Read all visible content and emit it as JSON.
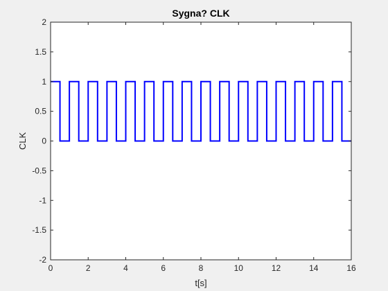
{
  "chart_data": {
    "type": "line",
    "title": "Sygna? CLK",
    "xlabel": "t[s]",
    "ylabel": "CLK",
    "xlim": [
      0,
      16
    ],
    "ylim": [
      -2,
      2
    ],
    "xticks": [
      0,
      2,
      4,
      6,
      8,
      10,
      12,
      14,
      16
    ],
    "yticks": [
      -2,
      -1.5,
      -1,
      -0.5,
      0,
      0.5,
      1,
      1.5,
      2
    ],
    "xtick_labels": [
      "0",
      "2",
      "4",
      "6",
      "8",
      "10",
      "12",
      "14",
      "16"
    ],
    "ytick_labels": [
      "-2",
      "-1.5",
      "-1",
      "-0.5",
      "0",
      "0.5",
      "1",
      "1.5",
      "2"
    ],
    "grid": false,
    "legend": "none",
    "series": [
      {
        "color": "#0000ff",
        "style": "step",
        "x": [
          0,
          0.5,
          0.5,
          1,
          1,
          1.5,
          1.5,
          2,
          2,
          2.5,
          2.5,
          3,
          3,
          3.5,
          3.5,
          4,
          4,
          4.5,
          4.5,
          5,
          5,
          5.5,
          5.5,
          6,
          6,
          6.5,
          6.5,
          7,
          7,
          7.5,
          7.5,
          8,
          8,
          8.5,
          8.5,
          9,
          9,
          9.5,
          9.5,
          10,
          10,
          10.5,
          10.5,
          11,
          11,
          11.5,
          11.5,
          12,
          12,
          12.5,
          12.5,
          13,
          13,
          13.5,
          13.5,
          14,
          14,
          14.5,
          14.5,
          15,
          15,
          15.5,
          15.5,
          16
        ],
        "y": [
          1,
          1,
          0,
          0,
          1,
          1,
          0,
          0,
          1,
          1,
          0,
          0,
          1,
          1,
          0,
          0,
          1,
          1,
          0,
          0,
          1,
          1,
          0,
          0,
          1,
          1,
          0,
          0,
          1,
          1,
          0,
          0,
          1,
          1,
          0,
          0,
          1,
          1,
          0,
          0,
          1,
          1,
          0,
          0,
          1,
          1,
          0,
          0,
          1,
          1,
          0,
          0,
          1,
          1,
          0,
          0,
          1,
          1,
          0,
          0,
          1,
          1,
          0,
          0
        ]
      }
    ]
  }
}
